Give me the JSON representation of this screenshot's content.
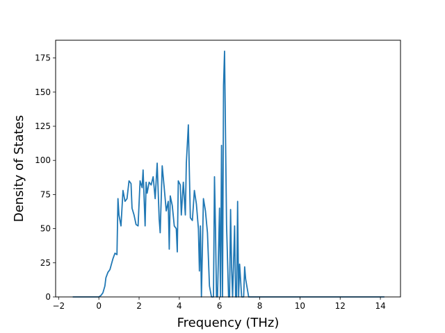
{
  "chart_data": {
    "type": "line",
    "title": "",
    "xlabel": "Frequency (THz)",
    "ylabel": "Density of States",
    "xlim": [
      -2.15,
      15.0
    ],
    "ylim": [
      0,
      188
    ],
    "x_ticks": [
      -2,
      0,
      2,
      4,
      6,
      8,
      10,
      12,
      14
    ],
    "y_ticks": [
      0,
      25,
      50,
      75,
      100,
      125,
      150,
      175
    ],
    "grid": false,
    "legend": "none",
    "color": "#1f77b4",
    "series": [
      {
        "x": [
          -1.3,
          -0.2,
          0.0,
          0.1,
          0.2,
          0.3,
          0.35,
          0.45,
          0.55,
          0.7,
          0.8,
          0.9,
          0.95,
          1.0,
          1.1,
          1.2,
          1.3,
          1.4,
          1.5,
          1.6,
          1.65,
          1.75,
          1.85,
          1.95,
          2.05,
          2.15,
          2.2,
          2.3,
          2.35,
          2.4,
          2.5,
          2.6,
          2.7,
          2.8,
          2.9,
          3.0,
          3.05,
          3.15,
          3.25,
          3.35,
          3.45,
          3.5,
          3.55,
          3.65,
          3.75,
          3.85,
          3.9,
          3.95,
          4.05,
          4.1,
          4.2,
          4.3,
          4.35,
          4.45,
          4.55,
          4.65,
          4.75,
          4.85,
          4.95,
          5.0,
          5.05,
          5.1,
          5.2,
          5.3,
          5.4,
          5.5,
          5.6,
          5.7,
          5.75,
          5.8,
          5.85,
          5.9,
          6.0,
          6.05,
          6.1,
          6.15,
          6.2,
          6.25,
          6.35,
          6.45,
          6.5,
          6.55,
          6.6,
          6.65,
          6.75,
          6.8,
          6.85,
          6.9,
          6.95,
          7.0,
          7.1,
          7.15,
          7.2,
          7.25,
          7.3,
          7.45,
          7.6,
          7.7,
          7.75,
          7.8,
          14.2
        ],
        "y": [
          0,
          0,
          0,
          1,
          3,
          8,
          14,
          18,
          20,
          28,
          32,
          31,
          72,
          60,
          52,
          78,
          70,
          72,
          85,
          83,
          65,
          60,
          53,
          52,
          85,
          80,
          93,
          52,
          84,
          76,
          84,
          82,
          88,
          72,
          98,
          57,
          47,
          96,
          80,
          63,
          70,
          35,
          74,
          67,
          52,
          50,
          33,
          85,
          82,
          60,
          84,
          60,
          98,
          126,
          58,
          56,
          78,
          68,
          50,
          19,
          52,
          0,
          72,
          63,
          47,
          8,
          0,
          0,
          88,
          50,
          0,
          0,
          65,
          0,
          111,
          0,
          155,
          180,
          53,
          0,
          0,
          64,
          22,
          0,
          52,
          0,
          0,
          70,
          0,
          24,
          0,
          0,
          0,
          22,
          13,
          0,
          0,
          0,
          0,
          0,
          0
        ]
      }
    ]
  }
}
